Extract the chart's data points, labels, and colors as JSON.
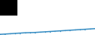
{
  "x": [
    2003,
    2004,
    2005,
    2006,
    2007,
    2008,
    2009,
    2010,
    2011,
    2012,
    2013,
    2014,
    2015,
    2016,
    2017,
    2018,
    2019,
    2020,
    2021,
    2022
  ],
  "y": [
    12,
    13,
    14,
    15,
    16,
    17,
    17.5,
    18,
    19,
    20,
    21,
    22,
    23,
    24,
    25,
    26,
    27,
    28,
    29,
    30
  ],
  "line_color": "#3a8fc4",
  "line_width": 1.1,
  "background_color": "#ffffff",
  "ylim": [
    10,
    120
  ],
  "xlim": [
    2003,
    2022
  ],
  "black_rect_color": "#000000"
}
